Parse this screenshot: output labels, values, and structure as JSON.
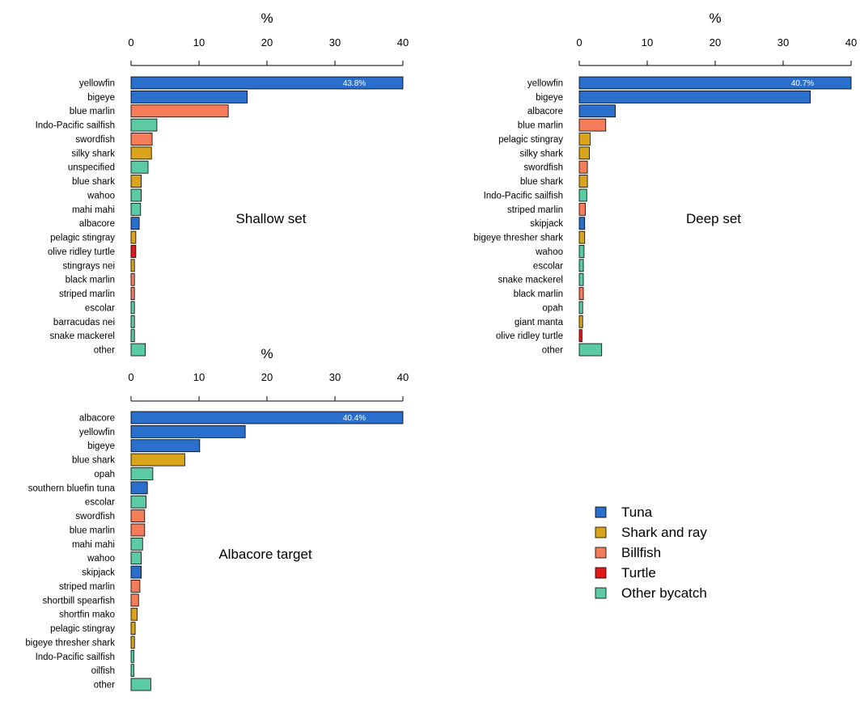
{
  "colors": {
    "Tuna": "#2a6fcb",
    "Shark and ray": "#d9a31a",
    "Billfish": "#f57c59",
    "Turtle": "#e31a1c",
    "Other bycatch": "#5ccaa3"
  },
  "legend": {
    "items": [
      {
        "name": "Tuna",
        "color": "#2a6fcb"
      },
      {
        "name": "Shark and ray",
        "color": "#d9a31a"
      },
      {
        "name": "Billfish",
        "color": "#f57c59"
      },
      {
        "name": "Turtle",
        "color": "#e31a1c"
      },
      {
        "name": "Other bycatch",
        "color": "#5ccaa3"
      }
    ]
  },
  "chart_data": [
    {
      "type": "bar",
      "title": "Shallow set",
      "xlabel": "%",
      "xlim": [
        0,
        40
      ],
      "ticks": [
        0,
        10,
        20,
        30,
        40
      ],
      "categories": [
        "yellowfin",
        "bigeye",
        "blue marlin",
        "Indo-Pacific sailfish",
        "swordfish",
        "silky shark",
        "unspecified",
        "blue shark",
        "wahoo",
        "mahi mahi",
        "albacore",
        "pelagic stingray",
        "olive ridley turtle",
        "stingrays nei",
        "black marlin",
        "striped marlin",
        "escolar",
        "barracudas nei",
        "snake mackerel",
        "other"
      ],
      "values": [
        43.8,
        17.1,
        14.3,
        3.8,
        3.1,
        3.0,
        2.5,
        1.5,
        1.5,
        1.4,
        1.2,
        0.7,
        0.7,
        0.5,
        0.5,
        0.5,
        0.5,
        0.5,
        0.5,
        2.1
      ],
      "groups": [
        "Tuna",
        "Tuna",
        "Billfish",
        "Other bycatch",
        "Billfish",
        "Shark and ray",
        "Other bycatch",
        "Shark and ray",
        "Other bycatch",
        "Other bycatch",
        "Tuna",
        "Shark and ray",
        "Turtle",
        "Shark and ray",
        "Billfish",
        "Billfish",
        "Other bycatch",
        "Other bycatch",
        "Other bycatch",
        "Other bycatch"
      ],
      "value_labels": [
        "43.8%",
        "",
        "",
        "",
        "",
        "",
        "",
        "",
        "",
        "",
        "",
        "",
        "",
        "",
        "",
        "",
        "",
        "",
        "",
        ""
      ]
    },
    {
      "type": "bar",
      "title": "Deep set",
      "xlabel": "%",
      "xlim": [
        0,
        40
      ],
      "ticks": [
        0,
        10,
        20,
        30,
        40
      ],
      "categories": [
        "yellowfin",
        "bigeye",
        "albacore",
        "blue marlin",
        "pelagic stingray",
        "silky shark",
        "swordfish",
        "blue shark",
        "Indo-Pacific sailfish",
        "striped marlin",
        "skipjack",
        "bigeye thresher shark",
        "wahoo",
        "escolar",
        "snake mackerel",
        "black marlin",
        "opah",
        "giant manta",
        "olive ridley turtle",
        "other"
      ],
      "values": [
        40.7,
        34.0,
        5.3,
        3.9,
        1.6,
        1.5,
        1.2,
        1.2,
        1.1,
        0.9,
        0.8,
        0.8,
        0.7,
        0.6,
        0.6,
        0.6,
        0.5,
        0.5,
        0.4,
        3.3
      ],
      "groups": [
        "Tuna",
        "Tuna",
        "Tuna",
        "Billfish",
        "Shark and ray",
        "Shark and ray",
        "Billfish",
        "Shark and ray",
        "Other bycatch",
        "Billfish",
        "Tuna",
        "Shark and ray",
        "Other bycatch",
        "Other bycatch",
        "Other bycatch",
        "Billfish",
        "Other bycatch",
        "Shark and ray",
        "Turtle",
        "Other bycatch"
      ],
      "value_labels": [
        "40.7%",
        "",
        "",
        "",
        "",
        "",
        "",
        "",
        "",
        "",
        "",
        "",
        "",
        "",
        "",
        "",
        "",
        "",
        "",
        ""
      ]
    },
    {
      "type": "bar",
      "title": "Albacore target",
      "xlabel": "%",
      "xlim": [
        0,
        40
      ],
      "ticks": [
        0,
        10,
        20,
        30,
        40
      ],
      "categories": [
        "albacore",
        "yellowfin",
        "bigeye",
        "blue shark",
        "opah",
        "southern bluefin tuna",
        "escolar",
        "swordfish",
        "blue marlin",
        "mahi mahi",
        "wahoo",
        "skipjack",
        "striped marlin",
        "shortbill spearfish",
        "shortfin mako",
        "pelagic stingray",
        "bigeye thresher shark",
        "Indo-Pacific sailfish",
        "oilfish",
        "other"
      ],
      "values": [
        40.4,
        16.8,
        10.1,
        7.9,
        3.2,
        2.4,
        2.2,
        2.0,
        2.0,
        1.7,
        1.5,
        1.5,
        1.3,
        1.1,
        0.9,
        0.6,
        0.5,
        0.4,
        0.4,
        2.9
      ],
      "groups": [
        "Tuna",
        "Tuna",
        "Tuna",
        "Shark and ray",
        "Other bycatch",
        "Tuna",
        "Other bycatch",
        "Billfish",
        "Billfish",
        "Other bycatch",
        "Other bycatch",
        "Tuna",
        "Billfish",
        "Billfish",
        "Shark and ray",
        "Shark and ray",
        "Shark and ray",
        "Other bycatch",
        "Other bycatch",
        "Other bycatch"
      ],
      "value_labels": [
        "40.4%",
        "",
        "",
        "",
        "",
        "",
        "",
        "",
        "",
        "",
        "",
        "",
        "",
        "",
        "",
        "",
        "",
        "",
        "",
        ""
      ]
    }
  ]
}
